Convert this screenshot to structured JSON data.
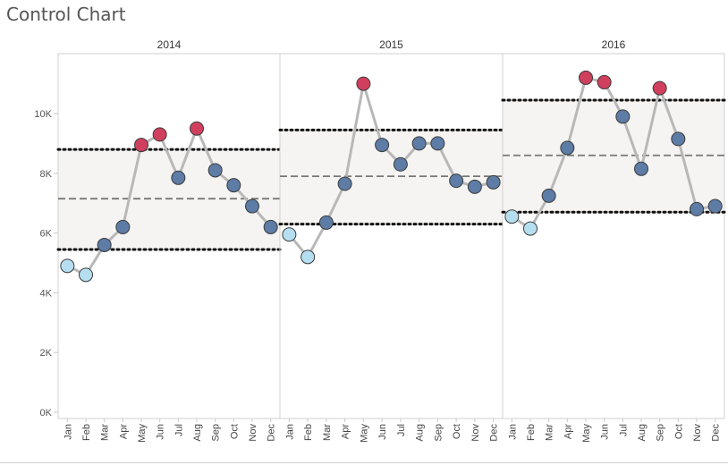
{
  "title": "Control Chart",
  "chart_data": {
    "type": "line",
    "y_ticks": [
      {
        "value": 0,
        "label": "0K"
      },
      {
        "value": 2000,
        "label": "2K"
      },
      {
        "value": 4000,
        "label": "4K"
      },
      {
        "value": 6000,
        "label": "6K"
      },
      {
        "value": 8000,
        "label": "8K"
      },
      {
        "value": 10000,
        "label": "10K"
      }
    ],
    "ylim": [
      0,
      12000
    ],
    "categories": [
      "Jan",
      "Feb",
      "Mar",
      "Apr",
      "May",
      "Jun",
      "Jul",
      "Aug",
      "Sep",
      "Oct",
      "Nov",
      "Dec"
    ],
    "panels": [
      {
        "label": "2014",
        "values": [
          4900,
          4600,
          5600,
          6200,
          8950,
          9300,
          7850,
          9500,
          8100,
          7600,
          6900,
          6200
        ],
        "mean": 7150,
        "ucl": 8800,
        "lcl": 5450
      },
      {
        "label": "2015",
        "values": [
          5950,
          5200,
          6350,
          7650,
          11000,
          8950,
          8300,
          9000,
          9000,
          7750,
          7550,
          7700
        ],
        "mean": 7900,
        "ucl": 9450,
        "lcl": 6300
      },
      {
        "label": "2016",
        "values": [
          6550,
          6150,
          7250,
          8850,
          11200,
          11050,
          9900,
          8150,
          10850,
          9150,
          6800,
          6900
        ],
        "mean": 8600,
        "ucl": 10450,
        "lcl": 6700
      }
    ],
    "colors": {
      "above": "#d0405e",
      "below": "#b5dff0",
      "within": "#5d7ca6",
      "line": "#b8b8b8",
      "band": "#f5f4f2"
    },
    "grid": false,
    "legend": "none"
  }
}
